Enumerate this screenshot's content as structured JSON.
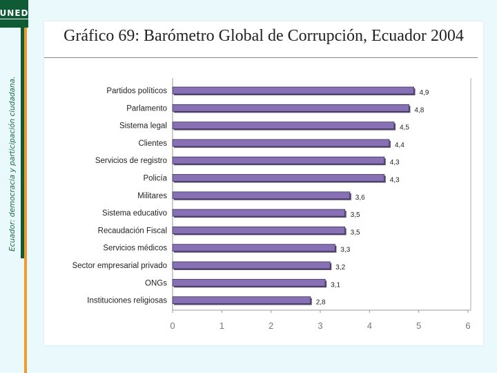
{
  "logo": {
    "text": "UNED"
  },
  "side_title": "Ecuador: democracia y participación ciudadana.",
  "colors": {
    "bar": "#8870b5",
    "bar_outline": "#3a2f57",
    "logo_green": "#0f5b36",
    "accent_orange": "#f39b2a"
  },
  "chart_data": {
    "type": "bar",
    "orientation": "horizontal",
    "title": "Gráfico 69: Barómetro Global de Corrupción, Ecuador 2004",
    "xlabel": "",
    "ylabel": "",
    "xlim": [
      0,
      6
    ],
    "x_ticks": [
      "0",
      "1",
      "2",
      "3",
      "4",
      "5",
      "6"
    ],
    "grid": false,
    "categories": [
      "Partidos políticos",
      "Parlamento",
      "Sistema legal",
      "Clientes",
      "Servicios de registro",
      "Policía",
      "Militares",
      "Sistema educativo",
      "Recaudación Fiscal",
      "Servicios médicos",
      "Sector empresarial privado",
      "ONGs",
      "Instituciones religiosas"
    ],
    "values": [
      4.9,
      4.8,
      4.5,
      4.4,
      4.3,
      4.3,
      3.6,
      3.5,
      3.5,
      3.3,
      3.2,
      3.1,
      2.8
    ],
    "value_labels": [
      "4,9",
      "4,8",
      "4,5",
      "4,4",
      "4,3",
      "4,3",
      "3,6",
      "3,5",
      "3,5",
      "3,3",
      "3,2",
      "3,1",
      "2,8"
    ]
  }
}
